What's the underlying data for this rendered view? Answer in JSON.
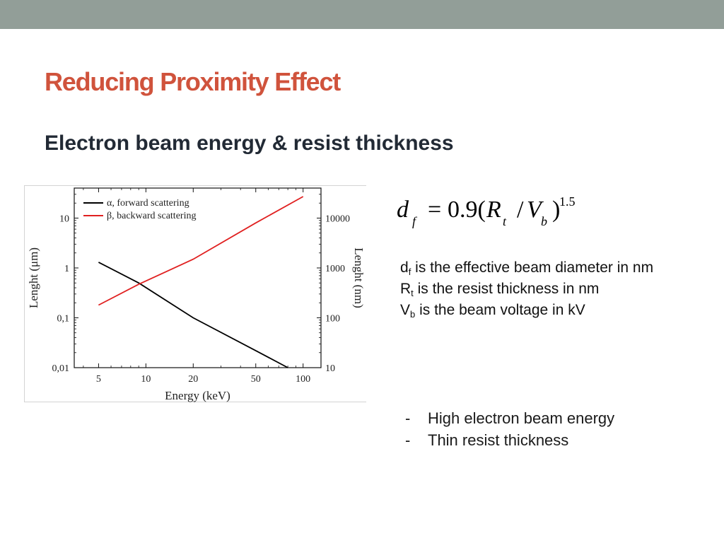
{
  "slide": {
    "title": "Reducing Proximity Effect",
    "subtitle": "Electron beam energy & resist thickness"
  },
  "colors": {
    "top_bar": "#929e98",
    "title": "#d0533c",
    "subtitle": "#222a35",
    "forward_series": "#000000",
    "backward_series": "#e02020"
  },
  "chart_data": {
    "type": "line",
    "xlabel": "Energy (keV)",
    "ylabel": "Lenght (μm)",
    "y2label": "Lenght (nm)",
    "x_scale": "log",
    "y_scale": "log",
    "xlim": [
      3.5,
      130
    ],
    "ylim": [
      0.01,
      40
    ],
    "y2lim": [
      10,
      40000
    ],
    "x_ticks": [
      5,
      10,
      20,
      50,
      100
    ],
    "x_tick_labels": [
      "5",
      "10",
      "20",
      "50",
      "100"
    ],
    "y_ticks": [
      0.01,
      0.1,
      1,
      10
    ],
    "y_tick_labels": [
      "0,01",
      "0,1",
      "1",
      "10"
    ],
    "y2_ticks": [
      10,
      100,
      1000,
      10000
    ],
    "y2_tick_labels": [
      "10",
      "100",
      "1000",
      "10000"
    ],
    "grid": false,
    "legend_position": "top-left",
    "series": [
      {
        "name": "α, forward scattering",
        "axis": "left",
        "unit": "μm",
        "color": "#000000",
        "x": [
          5,
          9,
          20,
          50,
          80
        ],
        "y": [
          1.3,
          0.5,
          0.1,
          0.022,
          0.01
        ]
      },
      {
        "name": "β, backward scattering",
        "axis": "right",
        "unit": "nm",
        "color": "#e02020",
        "x": [
          5,
          9,
          20,
          50,
          100
        ],
        "y": [
          180,
          470,
          1500,
          8000,
          27000
        ]
      }
    ]
  },
  "formula": {
    "lhs": "d",
    "lhs_sub": "f",
    "equals": "=",
    "coef": "0.9(",
    "r": "R",
    "r_sub": "t",
    "slash": "/",
    "v": "V",
    "v_sub": "b",
    "close": ")",
    "exp": "1.5"
  },
  "definitions": [
    {
      "symbol": "d",
      "sub": "f",
      "text": " is the effective beam diameter in nm"
    },
    {
      "symbol": "R",
      "sub": "t",
      "text": " is the resist thickness in nm"
    },
    {
      "symbol": "V",
      "sub": "b",
      "text": " is the beam voltage in kV"
    }
  ],
  "bullets": [
    {
      "marker": "-",
      "text": "High electron beam energy"
    },
    {
      "marker": "-",
      "text": "Thin resist thickness"
    }
  ]
}
